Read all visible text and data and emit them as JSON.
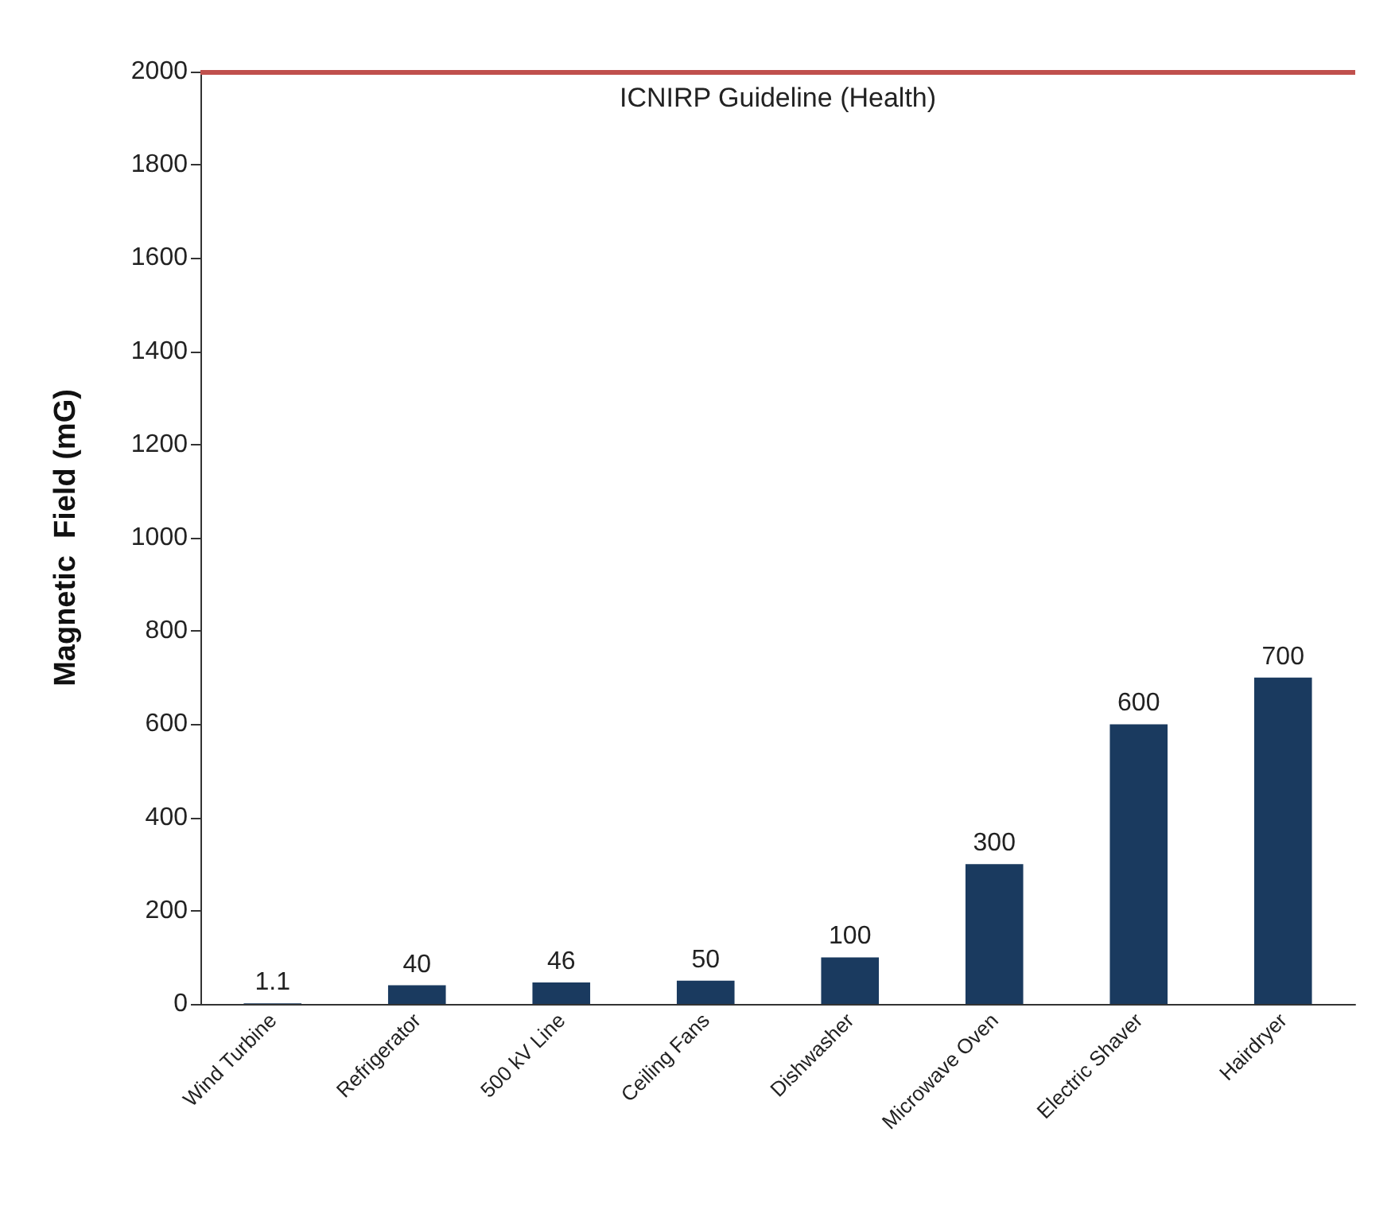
{
  "chart_data": {
    "type": "bar",
    "ylabel": "Magnetic  Field (mG)",
    "categories": [
      "Wind Turbine",
      "Refrigerator",
      "500 kV Line",
      "Ceiling Fans",
      "Dishwasher",
      "Microwave Oven",
      "Electric Shaver",
      "Hairdryer"
    ],
    "values": [
      1.1,
      40,
      46,
      50,
      100,
      300,
      600,
      700
    ],
    "color": "#1a3a5f",
    "data_labels": true,
    "ylim": [
      0,
      2000
    ],
    "yticks": [
      0,
      200,
      400,
      600,
      800,
      1000,
      1200,
      1400,
      1600,
      1800,
      2000
    ],
    "grid": false,
    "ref_lines": [
      {
        "axis": "y",
        "value": 2000,
        "label": "ICNIRP Guideline (Health)",
        "color": "#c0504d"
      }
    ]
  }
}
